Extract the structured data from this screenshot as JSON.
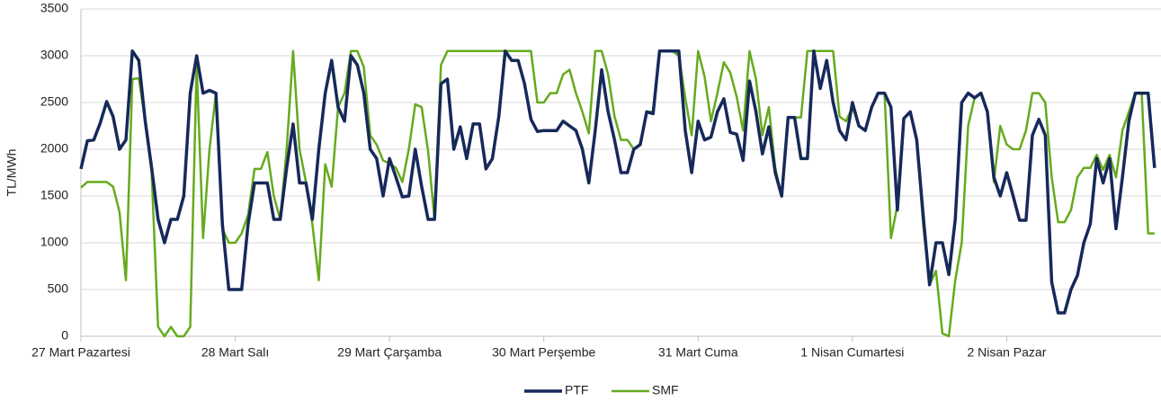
{
  "chart_data": {
    "type": "line",
    "y_label": "TL/MWh",
    "categories": [
      "27 Mart Pazartesi",
      null,
      null,
      null,
      null,
      null,
      null,
      null,
      null,
      null,
      null,
      null,
      null,
      null,
      null,
      null,
      null,
      null,
      null,
      null,
      null,
      null,
      null,
      null,
      "28 Mart Salı",
      null,
      null,
      null,
      null,
      null,
      null,
      null,
      null,
      null,
      null,
      null,
      null,
      null,
      null,
      null,
      null,
      null,
      null,
      null,
      null,
      null,
      null,
      null,
      "29 Mart Çarşamba",
      null,
      null,
      null,
      null,
      null,
      null,
      null,
      null,
      null,
      null,
      null,
      null,
      null,
      null,
      null,
      null,
      null,
      null,
      null,
      null,
      null,
      null,
      null,
      "30 Mart Perşembe",
      null,
      null,
      null,
      null,
      null,
      null,
      null,
      null,
      null,
      null,
      null,
      null,
      null,
      null,
      null,
      null,
      null,
      null,
      null,
      null,
      null,
      null,
      null,
      "31 Mart Cuma",
      null,
      null,
      null,
      null,
      null,
      null,
      null,
      null,
      null,
      null,
      null,
      null,
      null,
      null,
      null,
      null,
      null,
      null,
      null,
      null,
      null,
      null,
      null,
      "1 Nisan Cumartesi",
      null,
      null,
      null,
      null,
      null,
      null,
      null,
      null,
      null,
      null,
      null,
      null,
      null,
      null,
      null,
      null,
      null,
      null,
      null,
      null,
      null,
      null,
      null,
      "2 Nisan Pazar",
      null,
      null,
      null,
      null,
      null,
      null,
      null,
      null,
      null,
      null,
      null,
      null,
      null,
      null,
      null,
      null,
      null,
      null,
      null,
      null,
      null,
      null,
      null
    ],
    "series": [
      {
        "name": "PTF",
        "color": "#16295a",
        "values": [
          1790,
          2090,
          2100,
          2280,
          2510,
          2350,
          2000,
          2100,
          3050,
          2950,
          2300,
          1800,
          1250,
          1000,
          1250,
          1250,
          1500,
          2600,
          3000,
          2600,
          2630,
          2600,
          1200,
          500,
          500,
          500,
          1200,
          1640,
          1640,
          1640,
          1250,
          1250,
          1800,
          2270,
          1640,
          1640,
          1250,
          2000,
          2600,
          2950,
          2450,
          2300,
          3000,
          2900,
          2600,
          2000,
          1900,
          1500,
          1900,
          1700,
          1490,
          1500,
          2000,
          1600,
          1250,
          1250,
          2700,
          2750,
          2000,
          2240,
          1900,
          2270,
          2270,
          1790,
          1900,
          2350,
          3050,
          2950,
          2950,
          2700,
          2320,
          2190,
          2200,
          2200,
          2200,
          2300,
          2250,
          2200,
          2000,
          1640,
          2200,
          2850,
          2400,
          2100,
          1750,
          1750,
          2000,
          2050,
          2400,
          2380,
          3050,
          3050,
          3050,
          3050,
          2200,
          1750,
          2300,
          2100,
          2130,
          2400,
          2540,
          2180,
          2160,
          1880,
          2730,
          2400,
          1950,
          2240,
          1750,
          1500,
          2340,
          2340,
          1900,
          1900,
          3050,
          2650,
          2950,
          2500,
          2200,
          2100,
          2500,
          2250,
          2200,
          2450,
          2600,
          2600,
          2450,
          1350,
          2330,
          2400,
          2100,
          1300,
          550,
          1000,
          1000,
          660,
          1250,
          2500,
          2600,
          2550,
          2600,
          2400,
          1700,
          1500,
          1750,
          1500,
          1240,
          1240,
          2150,
          2320,
          2150,
          580,
          250,
          250,
          500,
          650,
          1000,
          1200,
          1900,
          1640,
          1900,
          1150,
          1700,
          2300,
          2600,
          2600,
          2600,
          1800
        ]
      },
      {
        "name": "SMF",
        "color": "#66aa1e",
        "values": [
          1590,
          1650,
          1650,
          1650,
          1650,
          1600,
          1330,
          600,
          2750,
          2760,
          2300,
          1750,
          100,
          0,
          100,
          0,
          0,
          100,
          2900,
          1050,
          2000,
          2600,
          1150,
          1000,
          1000,
          1100,
          1300,
          1790,
          1790,
          1970,
          1500,
          1250,
          2000,
          3050,
          2000,
          1650,
          1200,
          600,
          1840,
          1600,
          2450,
          2600,
          3050,
          3050,
          2880,
          2150,
          2050,
          1880,
          1850,
          1800,
          1650,
          2000,
          2480,
          2450,
          1980,
          1250,
          2900,
          3050,
          3050,
          3050,
          3050,
          3050,
          3050,
          3050,
          3050,
          3050,
          3050,
          3050,
          3050,
          3050,
          3050,
          2500,
          2500,
          2600,
          2600,
          2800,
          2850,
          2600,
          2400,
          2170,
          3050,
          3050,
          2800,
          2350,
          2100,
          2100,
          2000,
          2050,
          2400,
          2400,
          3050,
          3050,
          3050,
          3000,
          2550,
          2150,
          3050,
          2780,
          2300,
          2600,
          2930,
          2820,
          2560,
          2200,
          3050,
          2750,
          2150,
          2450,
          1800,
          1490,
          2340,
          2340,
          2340,
          3050,
          3050,
          3050,
          3050,
          3050,
          2350,
          2300,
          2450,
          2250,
          2200,
          2450,
          2600,
          2600,
          1050,
          1400,
          2330,
          2400,
          2100,
          1200,
          550,
          700,
          30,
          0,
          600,
          1000,
          2250,
          2550,
          2600,
          2400,
          1650,
          2250,
          2050,
          2000,
          2000,
          2200,
          2600,
          2600,
          2500,
          1700,
          1220,
          1220,
          1350,
          1700,
          1800,
          1800,
          1940,
          1780,
          1940,
          1700,
          2200,
          2400,
          2600,
          2600,
          1100,
          1100
        ]
      }
    ],
    "ylim": [
      0,
      3500
    ],
    "yticks": [
      0,
      500,
      1000,
      1500,
      2000,
      2500,
      3000,
      3500
    ],
    "grid": true,
    "legend": "bottom"
  }
}
